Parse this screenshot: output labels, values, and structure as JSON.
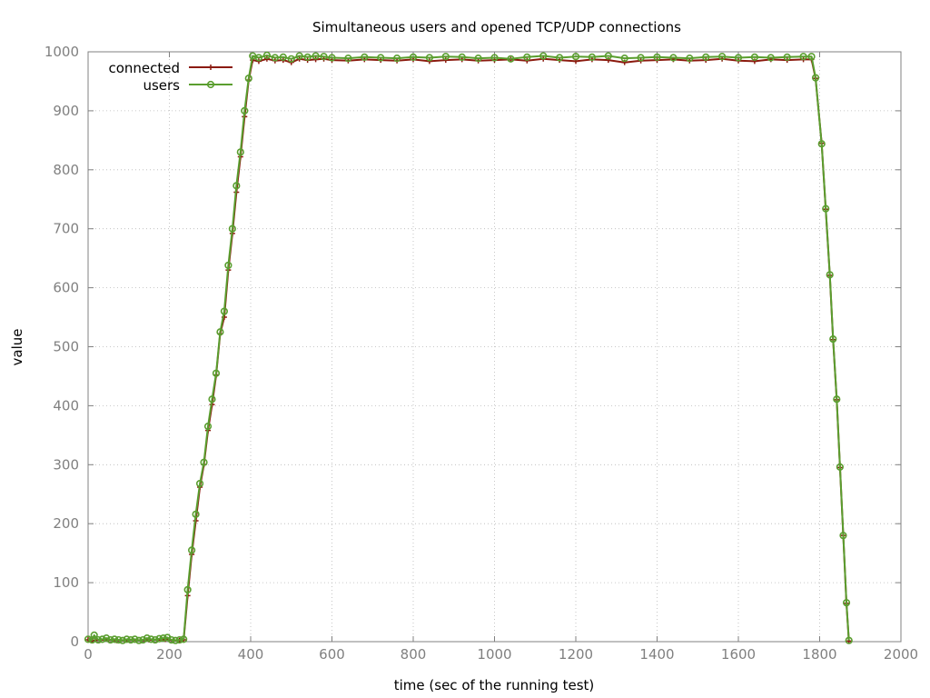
{
  "chart_data": {
    "type": "line",
    "title": "Simultaneous users and opened TCP/UDP connections",
    "xlabel": "time (sec of the running test)",
    "ylabel": "value",
    "xlim": [
      0,
      2000
    ],
    "ylim": [
      0,
      1000
    ],
    "xticks": [
      0,
      200,
      400,
      600,
      800,
      1000,
      1200,
      1400,
      1600,
      1800,
      2000
    ],
    "yticks": [
      0,
      100,
      200,
      300,
      400,
      500,
      600,
      700,
      800,
      900,
      1000
    ],
    "grid": true,
    "legend_position": "top-left",
    "series": [
      {
        "name": "connected",
        "color": "#8b1a0e",
        "marker": "plus",
        "points": [
          [
            0,
            3
          ],
          [
            10,
            2
          ],
          [
            30,
            3
          ],
          [
            50,
            3
          ],
          [
            70,
            2
          ],
          [
            90,
            2
          ],
          [
            110,
            3
          ],
          [
            130,
            2
          ],
          [
            150,
            3
          ],
          [
            170,
            3
          ],
          [
            190,
            4
          ],
          [
            210,
            2
          ],
          [
            225,
            2
          ],
          [
            235,
            3
          ],
          [
            245,
            78
          ],
          [
            255,
            148
          ],
          [
            265,
            205
          ],
          [
            275,
            262
          ],
          [
            285,
            300
          ],
          [
            295,
            358
          ],
          [
            305,
            402
          ],
          [
            315,
            452
          ],
          [
            325,
            522
          ],
          [
            335,
            550
          ],
          [
            345,
            630
          ],
          [
            355,
            692
          ],
          [
            365,
            762
          ],
          [
            375,
            822
          ],
          [
            385,
            890
          ],
          [
            395,
            952
          ],
          [
            405,
            986
          ],
          [
            420,
            984
          ],
          [
            440,
            988
          ],
          [
            460,
            985
          ],
          [
            480,
            986
          ],
          [
            500,
            982
          ],
          [
            520,
            988
          ],
          [
            540,
            986
          ],
          [
            560,
            987
          ],
          [
            580,
            988
          ],
          [
            600,
            986
          ],
          [
            640,
            985
          ],
          [
            680,
            987
          ],
          [
            720,
            986
          ],
          [
            760,
            985
          ],
          [
            800,
            987
          ],
          [
            840,
            984
          ],
          [
            880,
            986
          ],
          [
            920,
            987
          ],
          [
            960,
            985
          ],
          [
            1000,
            986
          ],
          [
            1040,
            987
          ],
          [
            1080,
            985
          ],
          [
            1120,
            988
          ],
          [
            1160,
            986
          ],
          [
            1200,
            984
          ],
          [
            1240,
            987
          ],
          [
            1280,
            986
          ],
          [
            1320,
            982
          ],
          [
            1360,
            985
          ],
          [
            1400,
            986
          ],
          [
            1440,
            987
          ],
          [
            1480,
            985
          ],
          [
            1520,
            986
          ],
          [
            1560,
            988
          ],
          [
            1600,
            985
          ],
          [
            1640,
            984
          ],
          [
            1680,
            987
          ],
          [
            1720,
            986
          ],
          [
            1760,
            987
          ],
          [
            1780,
            987
          ],
          [
            1790,
            955
          ],
          [
            1805,
            845
          ],
          [
            1815,
            733
          ],
          [
            1825,
            621
          ],
          [
            1833,
            512
          ],
          [
            1842,
            410
          ],
          [
            1850,
            295
          ],
          [
            1858,
            180
          ],
          [
            1866,
            65
          ],
          [
            1872,
            1
          ]
        ]
      },
      {
        "name": "users",
        "color": "#5a9e2f",
        "marker": "circle",
        "points": [
          [
            0,
            4
          ],
          [
            10,
            3
          ],
          [
            15,
            11
          ],
          [
            25,
            3
          ],
          [
            35,
            4
          ],
          [
            45,
            6
          ],
          [
            55,
            3
          ],
          [
            65,
            4
          ],
          [
            75,
            3
          ],
          [
            85,
            2
          ],
          [
            95,
            4
          ],
          [
            105,
            3
          ],
          [
            115,
            4
          ],
          [
            125,
            2
          ],
          [
            135,
            3
          ],
          [
            145,
            6
          ],
          [
            155,
            4
          ],
          [
            165,
            3
          ],
          [
            175,
            5
          ],
          [
            185,
            6
          ],
          [
            195,
            7
          ],
          [
            205,
            3
          ],
          [
            215,
            2
          ],
          [
            225,
            3
          ],
          [
            235,
            4
          ],
          [
            245,
            88
          ],
          [
            255,
            155
          ],
          [
            265,
            216
          ],
          [
            275,
            268
          ],
          [
            285,
            304
          ],
          [
            295,
            365
          ],
          [
            305,
            411
          ],
          [
            315,
            455
          ],
          [
            325,
            525
          ],
          [
            335,
            560
          ],
          [
            345,
            638
          ],
          [
            355,
            700
          ],
          [
            365,
            773
          ],
          [
            375,
            830
          ],
          [
            385,
            900
          ],
          [
            395,
            955
          ],
          [
            405,
            993
          ],
          [
            420,
            990
          ],
          [
            440,
            994
          ],
          [
            460,
            990
          ],
          [
            480,
            991
          ],
          [
            500,
            988
          ],
          [
            520,
            993
          ],
          [
            540,
            991
          ],
          [
            560,
            993
          ],
          [
            580,
            992
          ],
          [
            600,
            990
          ],
          [
            640,
            989
          ],
          [
            680,
            991
          ],
          [
            720,
            990
          ],
          [
            760,
            989
          ],
          [
            800,
            991
          ],
          [
            840,
            990
          ],
          [
            880,
            992
          ],
          [
            920,
            991
          ],
          [
            960,
            989
          ],
          [
            1000,
            990
          ],
          [
            1040,
            988
          ],
          [
            1080,
            991
          ],
          [
            1120,
            993
          ],
          [
            1160,
            990
          ],
          [
            1200,
            992
          ],
          [
            1240,
            991
          ],
          [
            1280,
            993
          ],
          [
            1320,
            989
          ],
          [
            1360,
            990
          ],
          [
            1400,
            991
          ],
          [
            1440,
            990
          ],
          [
            1480,
            989
          ],
          [
            1520,
            991
          ],
          [
            1560,
            992
          ],
          [
            1600,
            990
          ],
          [
            1640,
            991
          ],
          [
            1680,
            990
          ],
          [
            1720,
            991
          ],
          [
            1760,
            992
          ],
          [
            1780,
            992
          ],
          [
            1790,
            956
          ],
          [
            1805,
            844
          ],
          [
            1815,
            734
          ],
          [
            1825,
            622
          ],
          [
            1833,
            513
          ],
          [
            1842,
            411
          ],
          [
            1850,
            296
          ],
          [
            1858,
            180
          ],
          [
            1866,
            66
          ],
          [
            1872,
            2
          ]
        ]
      }
    ]
  }
}
